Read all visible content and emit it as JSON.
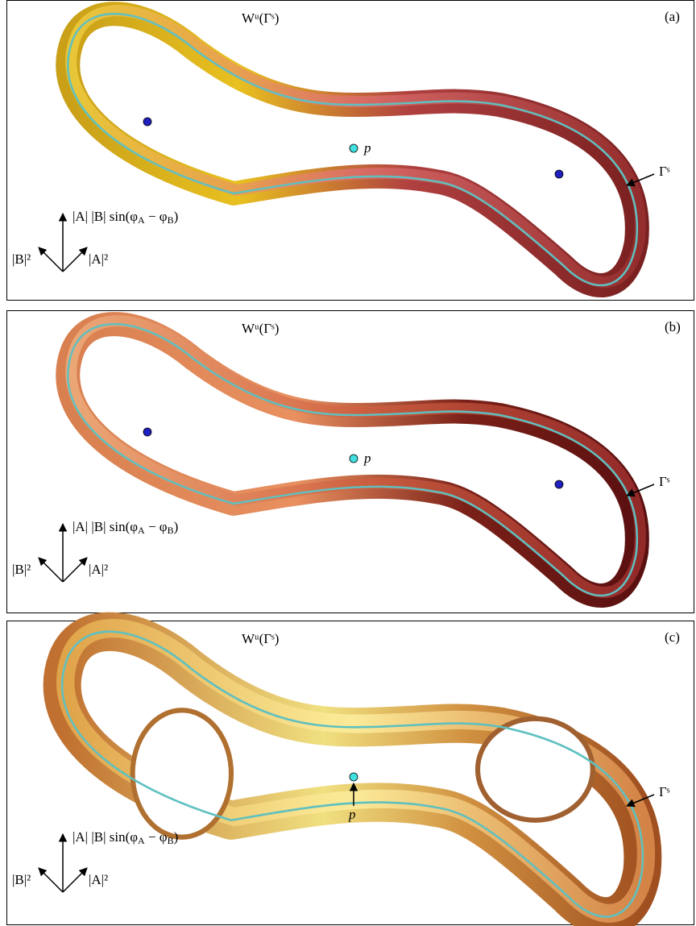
{
  "panels": [
    {
      "label": "(a)",
      "manifold_label": "Wᵘ(Γˢ)",
      "orbit_label": "Γˢ",
      "point_label": "p",
      "axis_up": [
        "|A| |B| sin(φ",
        "A",
        " − φ",
        "B",
        ")"
      ],
      "axis_left": "|B|²",
      "axis_right": "|A|²"
    },
    {
      "label": "(b)",
      "manifold_label": "Wᵘ(Γˢ)",
      "orbit_label": "Γˢ",
      "point_label": "p",
      "axis_up": [
        "|A| |B| sin(φ",
        "A",
        " − φ",
        "B",
        ")"
      ],
      "axis_left": "|B|²",
      "axis_right": "|A|²"
    },
    {
      "label": "(c)",
      "manifold_label": "Wᵘ(Γˢ)",
      "orbit_label": "Γˢ",
      "point_label": "p",
      "axis_up": [
        "|A| |B| sin(φ",
        "A",
        " − φ",
        "B",
        ")"
      ],
      "axis_left": "|B|²",
      "axis_right": "|A|²"
    }
  ]
}
